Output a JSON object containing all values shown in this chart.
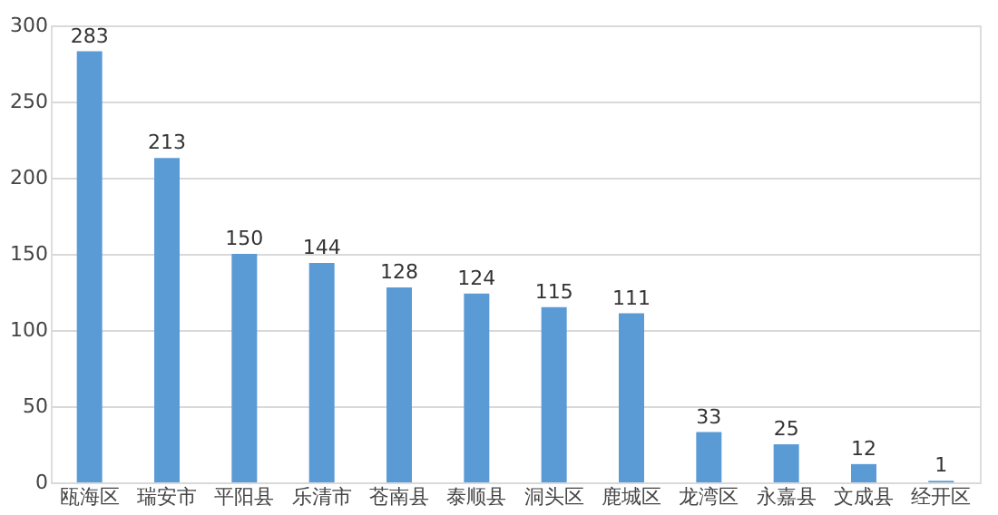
{
  "chart_data": {
    "type": "bar",
    "categories": [
      "瓯海区",
      "瑞安市",
      "平阳县",
      "乐清市",
      "苍南县",
      "泰顺县",
      "洞头区",
      "鹿城区",
      "龙湾区",
      "永嘉县",
      "文成县",
      "经开区"
    ],
    "values": [
      283,
      213,
      150,
      144,
      128,
      124,
      115,
      111,
      33,
      25,
      12,
      1
    ],
    "color": "#5b9bd5",
    "ylim": [
      0,
      300
    ],
    "yticks": [
      0,
      50,
      100,
      150,
      200,
      250,
      300
    ],
    "grid": "y",
    "data_labels": true
  }
}
